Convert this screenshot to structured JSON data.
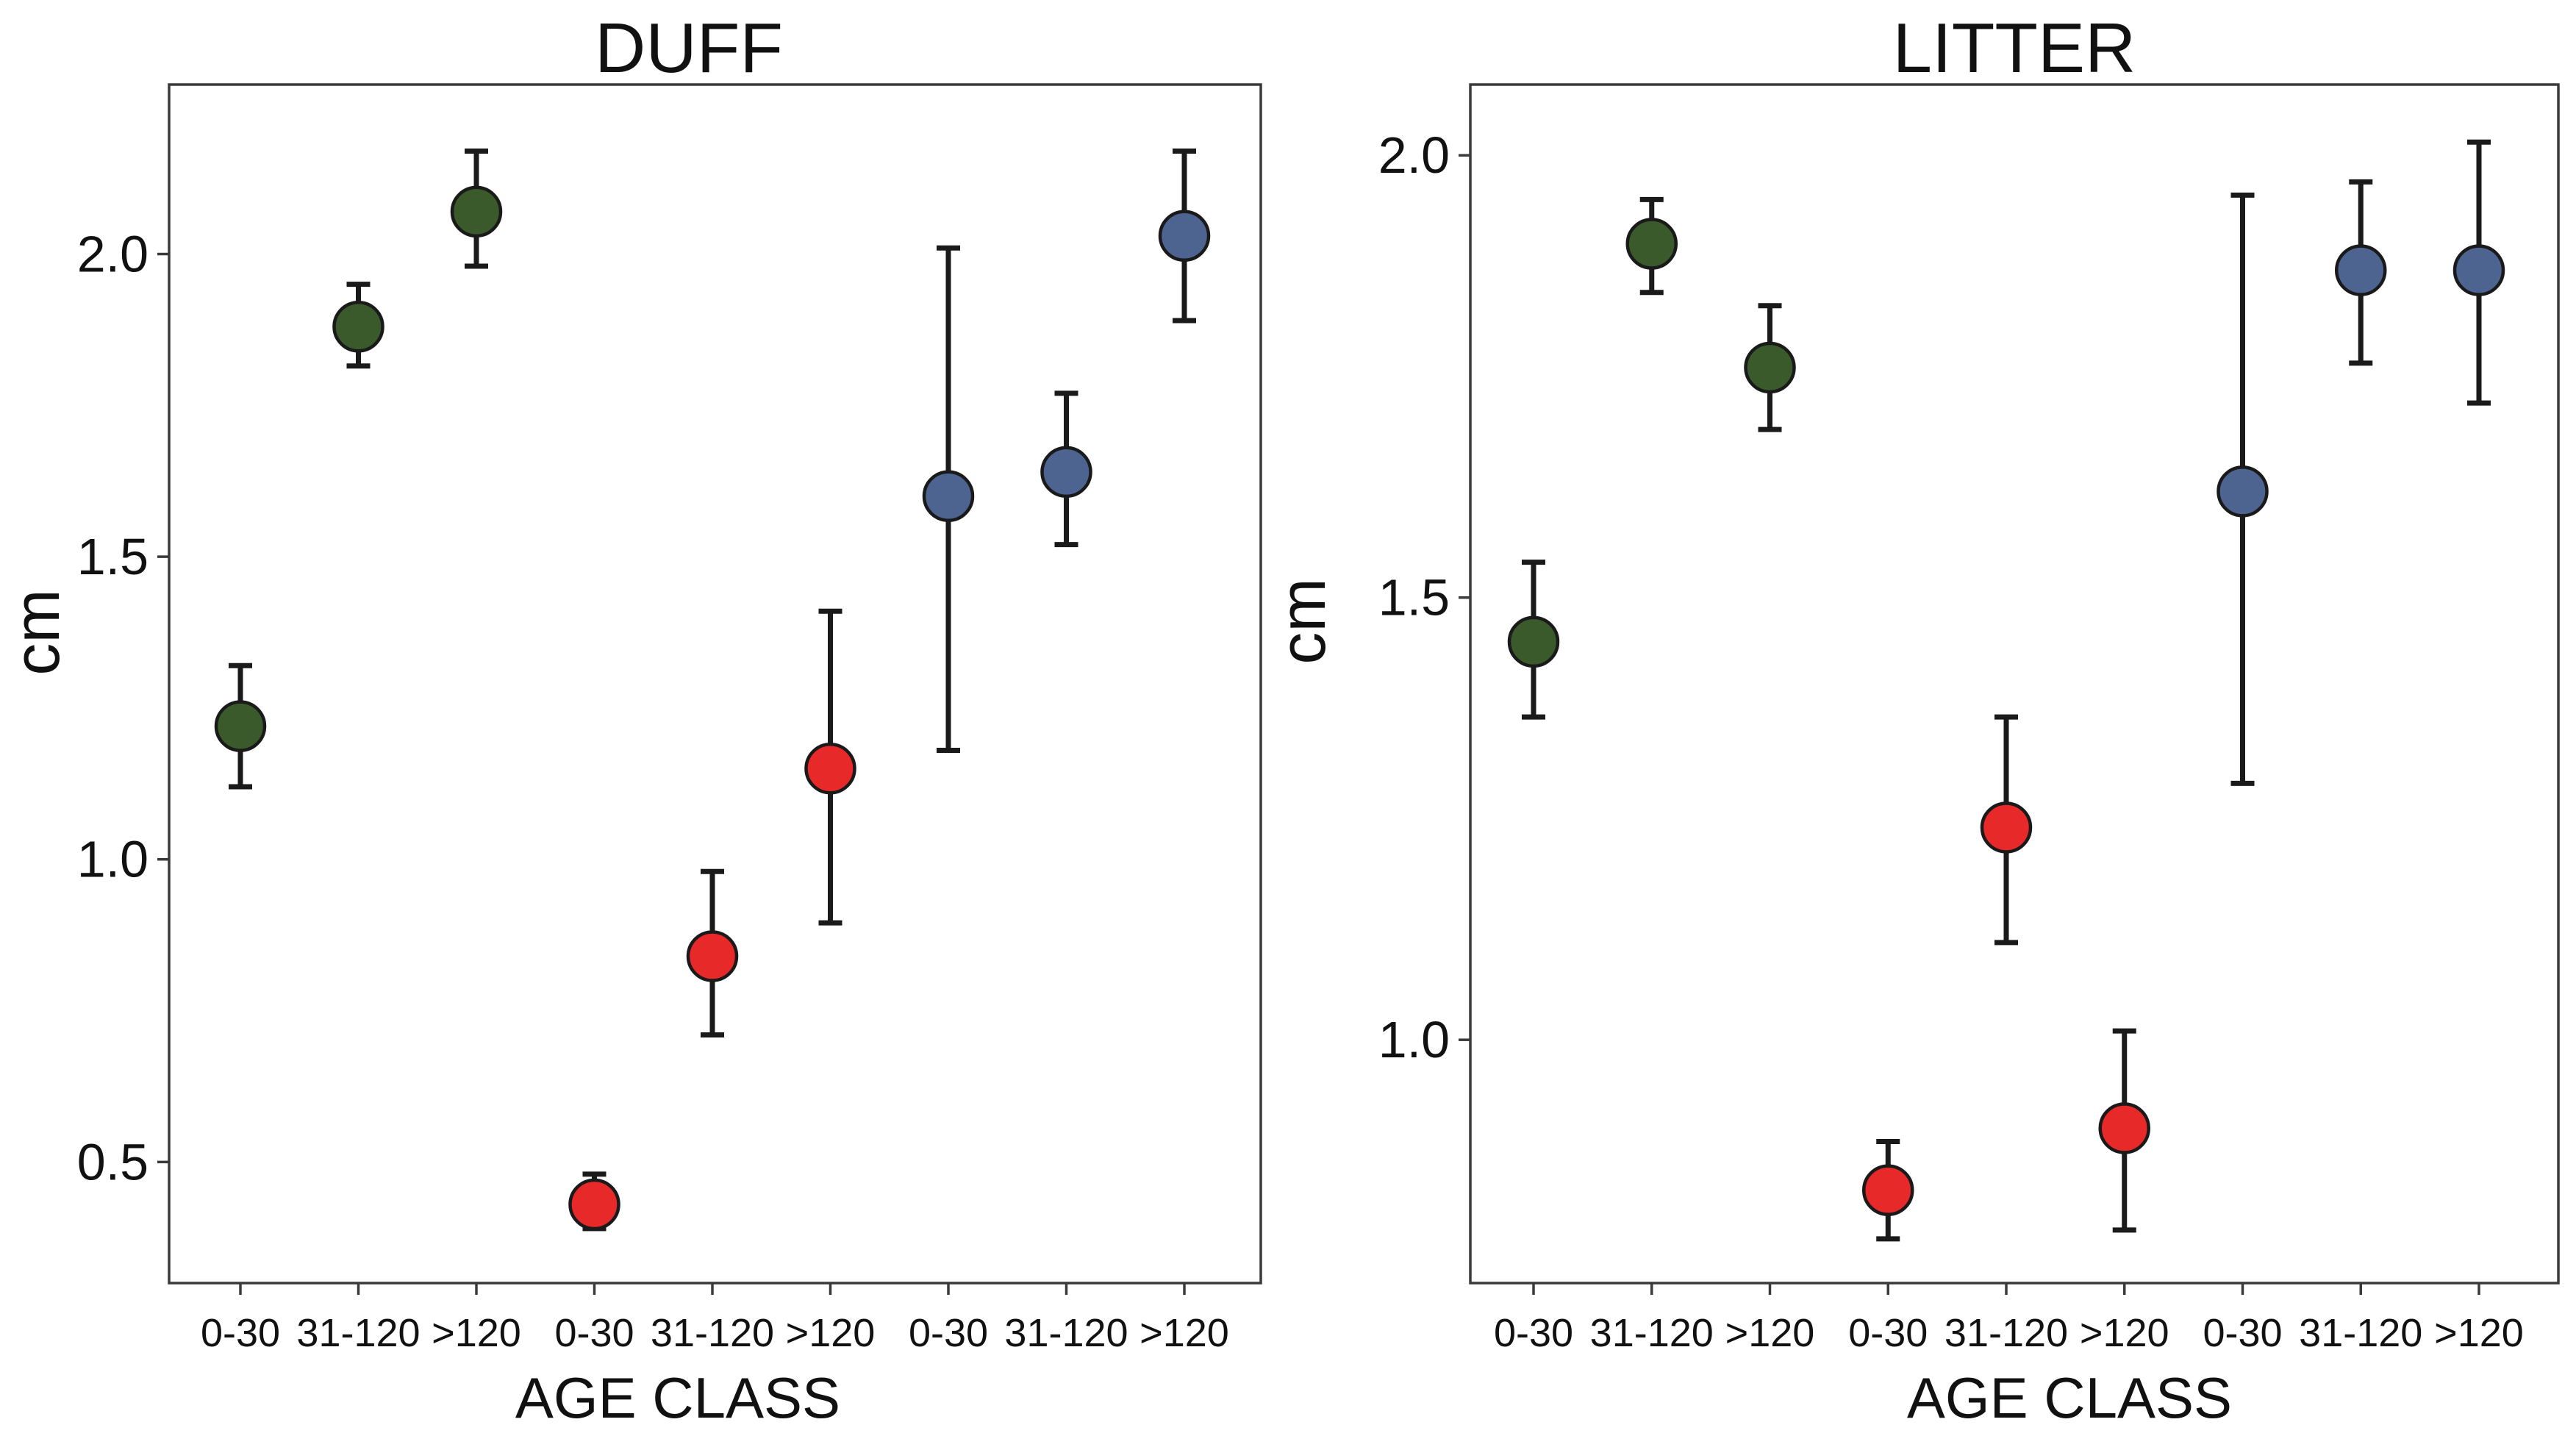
{
  "chart_data": [
    {
      "type": "scatter",
      "title": "DUFF",
      "xlabel": "AGE CLASS",
      "ylabel": "cm",
      "ylim": [
        0.3,
        2.28
      ],
      "yticks": [
        0.5,
        1.0,
        1.5,
        2.0
      ],
      "ytick_labels": [
        "0.5",
        "1.0",
        "1.5",
        "2.0"
      ],
      "categories": [
        "0-30",
        "31-120",
        ">120",
        "0-30",
        "31-120",
        ">120",
        "0-30",
        "31-120",
        ">120"
      ],
      "points": [
        {
          "value": 1.22,
          "lower": 1.12,
          "upper": 1.32,
          "color": "#3a5a2c"
        },
        {
          "value": 1.88,
          "lower": 1.815,
          "upper": 1.95,
          "color": "#3a5a2c"
        },
        {
          "value": 2.07,
          "lower": 1.98,
          "upper": 2.17,
          "color": "#3a5a2c"
        },
        {
          "value": 0.43,
          "lower": 0.39,
          "upper": 0.48,
          "color": "#e8292a"
        },
        {
          "value": 0.84,
          "lower": 0.71,
          "upper": 0.98,
          "color": "#e8292a"
        },
        {
          "value": 1.15,
          "lower": 0.895,
          "upper": 1.41,
          "color": "#e8292a"
        },
        {
          "value": 1.6,
          "lower": 1.18,
          "upper": 2.01,
          "color": "#4d6491"
        },
        {
          "value": 1.64,
          "lower": 1.52,
          "upper": 1.77,
          "color": "#4d6491"
        },
        {
          "value": 2.03,
          "lower": 1.89,
          "upper": 2.17,
          "color": "#4d6491"
        }
      ]
    },
    {
      "type": "scatter",
      "title": "LITTER",
      "xlabel": "AGE CLASS",
      "ylabel": "cm",
      "ylim": [
        0.725,
        2.08
      ],
      "yticks": [
        1.0,
        1.5,
        2.0
      ],
      "ytick_labels": [
        "1.0",
        "1.5",
        "2.0"
      ],
      "categories": [
        "0-30",
        "31-120",
        ">120",
        "0-30",
        "31-120",
        ">120",
        "0-30",
        "31-120",
        ">120"
      ],
      "points": [
        {
          "value": 1.45,
          "lower": 1.365,
          "upper": 1.54,
          "color": "#3a5a2c"
        },
        {
          "value": 1.9,
          "lower": 1.845,
          "upper": 1.95,
          "color": "#3a5a2c"
        },
        {
          "value": 1.76,
          "lower": 1.69,
          "upper": 1.83,
          "color": "#3a5a2c"
        },
        {
          "value": 0.83,
          "lower": 0.775,
          "upper": 0.885,
          "color": "#e8292a"
        },
        {
          "value": 1.24,
          "lower": 1.11,
          "upper": 1.365,
          "color": "#e8292a"
        },
        {
          "value": 0.9,
          "lower": 0.785,
          "upper": 1.01,
          "color": "#e8292a"
        },
        {
          "value": 1.62,
          "lower": 1.29,
          "upper": 1.955,
          "color": "#4d6491"
        },
        {
          "value": 1.87,
          "lower": 1.765,
          "upper": 1.97,
          "color": "#4d6491"
        },
        {
          "value": 1.87,
          "lower": 1.72,
          "upper": 2.015,
          "color": "#4d6491"
        }
      ]
    }
  ]
}
